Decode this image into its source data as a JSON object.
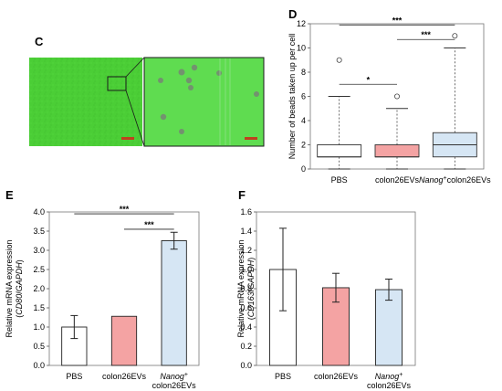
{
  "panels": {
    "c": {
      "letter": "C",
      "scale_bar_left": "",
      "scale_bar_right": ""
    },
    "d": {
      "letter": "D"
    },
    "e": {
      "letter": "E"
    },
    "f": {
      "letter": "F"
    }
  },
  "chart_data": [
    {
      "id": "D",
      "type": "boxplot",
      "ylabel": "Number of beads taken up per cell",
      "ylim": [
        0,
        12
      ],
      "yticks": [
        0,
        2,
        4,
        6,
        8,
        10,
        12
      ],
      "categories": [
        {
          "label": "PBS",
          "superscript": "",
          "suffix": ""
        },
        {
          "label": "colon26EVs",
          "superscript": "",
          "suffix": ""
        },
        {
          "label": "Nanog",
          "superscript": "+",
          "suffix": "colon26EVs"
        }
      ],
      "boxes": [
        {
          "q1": 1,
          "median": 1,
          "q3": 2,
          "whisker_low": 0,
          "whisker_high": 6,
          "outliers": [
            9
          ],
          "color": "#ffffff"
        },
        {
          "q1": 1,
          "median": 1,
          "q3": 2,
          "whisker_low": 0,
          "whisker_high": 5,
          "outliers": [
            6
          ],
          "color": "#f4a3a3"
        },
        {
          "q1": 1,
          "median": 2,
          "q3": 3,
          "whisker_low": 0,
          "whisker_high": 10,
          "outliers": [
            11
          ],
          "color": "#d6e6f4"
        }
      ],
      "significance": [
        {
          "from": 0,
          "to": 1,
          "y": 7,
          "label": "*"
        },
        {
          "from": 0,
          "to": 2,
          "y": 11.9,
          "label": "***"
        },
        {
          "from": 1,
          "to": 2,
          "y": 10.7,
          "label": "***"
        }
      ]
    },
    {
      "id": "E",
      "type": "bar",
      "ylabel_line1": "Relative mRNA expression",
      "ylabel_line2_a": "(",
      "ylabel_line2_gene": "CD80",
      "ylabel_line2_b": "/",
      "ylabel_line2_ref": "GAPDH",
      "ylabel_line2_c": ")",
      "ylim": [
        0,
        4
      ],
      "yticks": [
        "0.0",
        "0.5",
        "1.0",
        "1.5",
        "2.0",
        "2.5",
        "3.0",
        "3.5",
        "4.0"
      ],
      "categories": [
        {
          "label": "PBS",
          "label2": "",
          "superscript": ""
        },
        {
          "label": "colon26EVs",
          "label2": "",
          "superscript": ""
        },
        {
          "label": "Nanog",
          "label2": "colon26EVs",
          "superscript": "+"
        }
      ],
      "values": [
        1.0,
        1.28,
        3.25
      ],
      "errors": [
        0.3,
        0.0,
        0.22
      ],
      "colors": [
        "#ffffff",
        "#f4a3a3",
        "#d6e6f4"
      ],
      "significance": [
        {
          "from": 0,
          "to": 2,
          "y": 3.95,
          "label": "***"
        },
        {
          "from": 1,
          "to": 2,
          "y": 3.55,
          "label": "***"
        }
      ]
    },
    {
      "id": "F",
      "type": "bar",
      "ylabel_line1": "Relative mRNA expression",
      "ylabel_line2_a": "(",
      "ylabel_line2_gene": "CD163",
      "ylabel_line2_b": "/",
      "ylabel_line2_ref": "GAPDH",
      "ylabel_line2_c": ")",
      "ylim": [
        0,
        1.6
      ],
      "yticks": [
        "0.0",
        "0.2",
        "0.4",
        "0.6",
        "0.8",
        "1.0",
        "1.2",
        "1.4",
        "1.6"
      ],
      "categories": [
        {
          "label": "PBS",
          "label2": "",
          "superscript": ""
        },
        {
          "label": "colon26EVs",
          "label2": "",
          "superscript": ""
        },
        {
          "label": "Nanog",
          "label2": "colon26EVs",
          "superscript": "+"
        }
      ],
      "values": [
        1.0,
        0.81,
        0.79
      ],
      "errors": [
        0.43,
        0.15,
        0.11
      ],
      "colors": [
        "#ffffff",
        "#f4a3a3",
        "#d6e6f4"
      ],
      "significance": []
    }
  ]
}
